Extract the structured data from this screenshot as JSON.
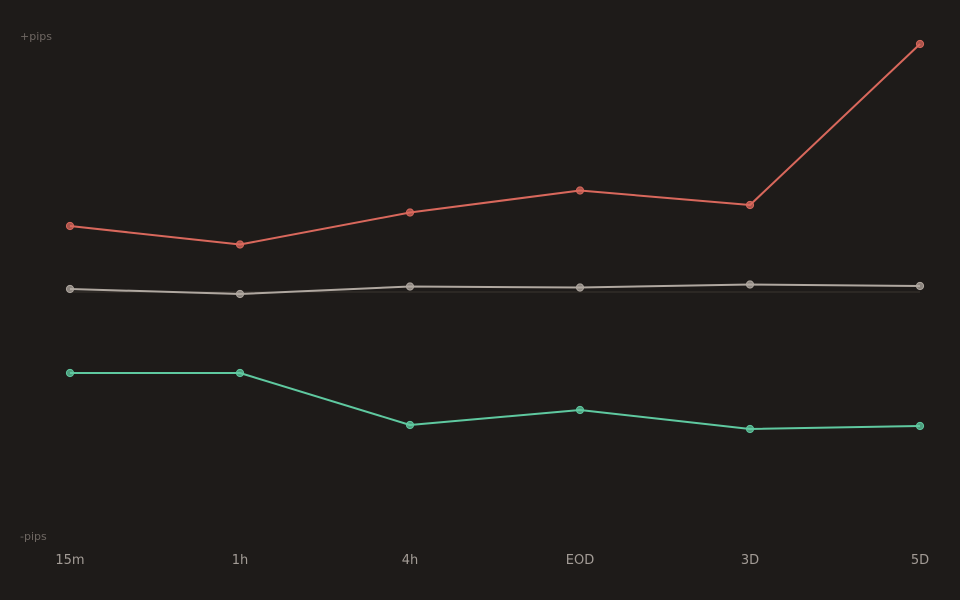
{
  "chart_data": {
    "type": "line",
    "y_top_label": "+pips",
    "y_bottom_label": "-pips",
    "categories": [
      "15m",
      "1h",
      "4h",
      "EOD",
      "3D",
      "5D"
    ],
    "ylim": [
      -100,
      100
    ],
    "grid": false,
    "legend": "none",
    "series": [
      {
        "color": "#d9685c",
        "values": [
          25.6,
          18.2,
          31.0,
          39.8,
          34.0,
          98.4
        ]
      },
      {
        "color": "#b0a8a0",
        "values": [
          0.4,
          -1.6,
          1.4,
          1.0,
          2.2,
          1.6
        ]
      },
      {
        "color": "#5fc9a0",
        "values": [
          -33.2,
          -33.2,
          -54.0,
          -48.0,
          -55.6,
          -54.4
        ]
      }
    ],
    "baseline": {
      "color": "#3a3430",
      "value": -0.8
    }
  }
}
